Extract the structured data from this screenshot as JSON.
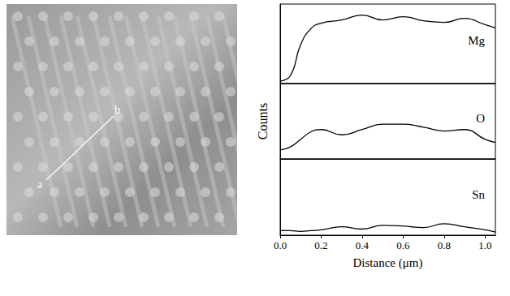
{
  "chart_data": [
    {
      "type": "line",
      "x": [
        0,
        0.05,
        0.1,
        0.15,
        0.2,
        0.3,
        0.4,
        0.5,
        0.6,
        0.7,
        0.8,
        0.9,
        1.0,
        1.05
      ],
      "series": [
        {
          "name": "Mg",
          "color": "#000000",
          "values": [
            3,
            10,
            49,
            69,
            76,
            80,
            86,
            80,
            84,
            79,
            77,
            82,
            74,
            70
          ]
        }
      ],
      "xlim": [
        0,
        1.05
      ],
      "ylim": [
        0,
        100
      ],
      "tick_labels": false,
      "grid": false
    },
    {
      "type": "line",
      "ylabel": "Counts",
      "x": [
        0,
        0.05,
        0.1,
        0.15,
        0.2,
        0.3,
        0.4,
        0.5,
        0.6,
        0.7,
        0.8,
        0.9,
        1.0,
        1.05
      ],
      "series": [
        {
          "name": "O",
          "color": "#000000",
          "values": [
            12,
            16,
            26,
            36,
            39,
            32,
            39,
            46,
            46,
            42,
            37,
            39,
            26,
            22
          ]
        }
      ],
      "xlim": [
        0,
        1.05
      ],
      "ylim": [
        0,
        100
      ],
      "tick_labels": false,
      "grid": false
    },
    {
      "type": "line",
      "xlabel": "Distance (μm)",
      "x": [
        0,
        0.05,
        0.1,
        0.15,
        0.2,
        0.3,
        0.4,
        0.5,
        0.6,
        0.7,
        0.8,
        0.9,
        1.0,
        1.05
      ],
      "series": [
        {
          "name": "Sn",
          "color": "#000000",
          "values": [
            6,
            6,
            5,
            6,
            7,
            11,
            8,
            13,
            12,
            10,
            15,
            11,
            7,
            4
          ]
        }
      ],
      "xlim": [
        0,
        1.05
      ],
      "ylim": [
        0,
        100
      ],
      "xticks": [
        {
          "value": 0,
          "label": "0.0"
        },
        0.2,
        0.4,
        0.6,
        0.8,
        {
          "value": 1,
          "label": "1.0"
        }
      ],
      "tick_labels": "x",
      "grid": false
    }
  ],
  "micrograph": {
    "line_start_label": "a",
    "line_end_label": "b"
  }
}
